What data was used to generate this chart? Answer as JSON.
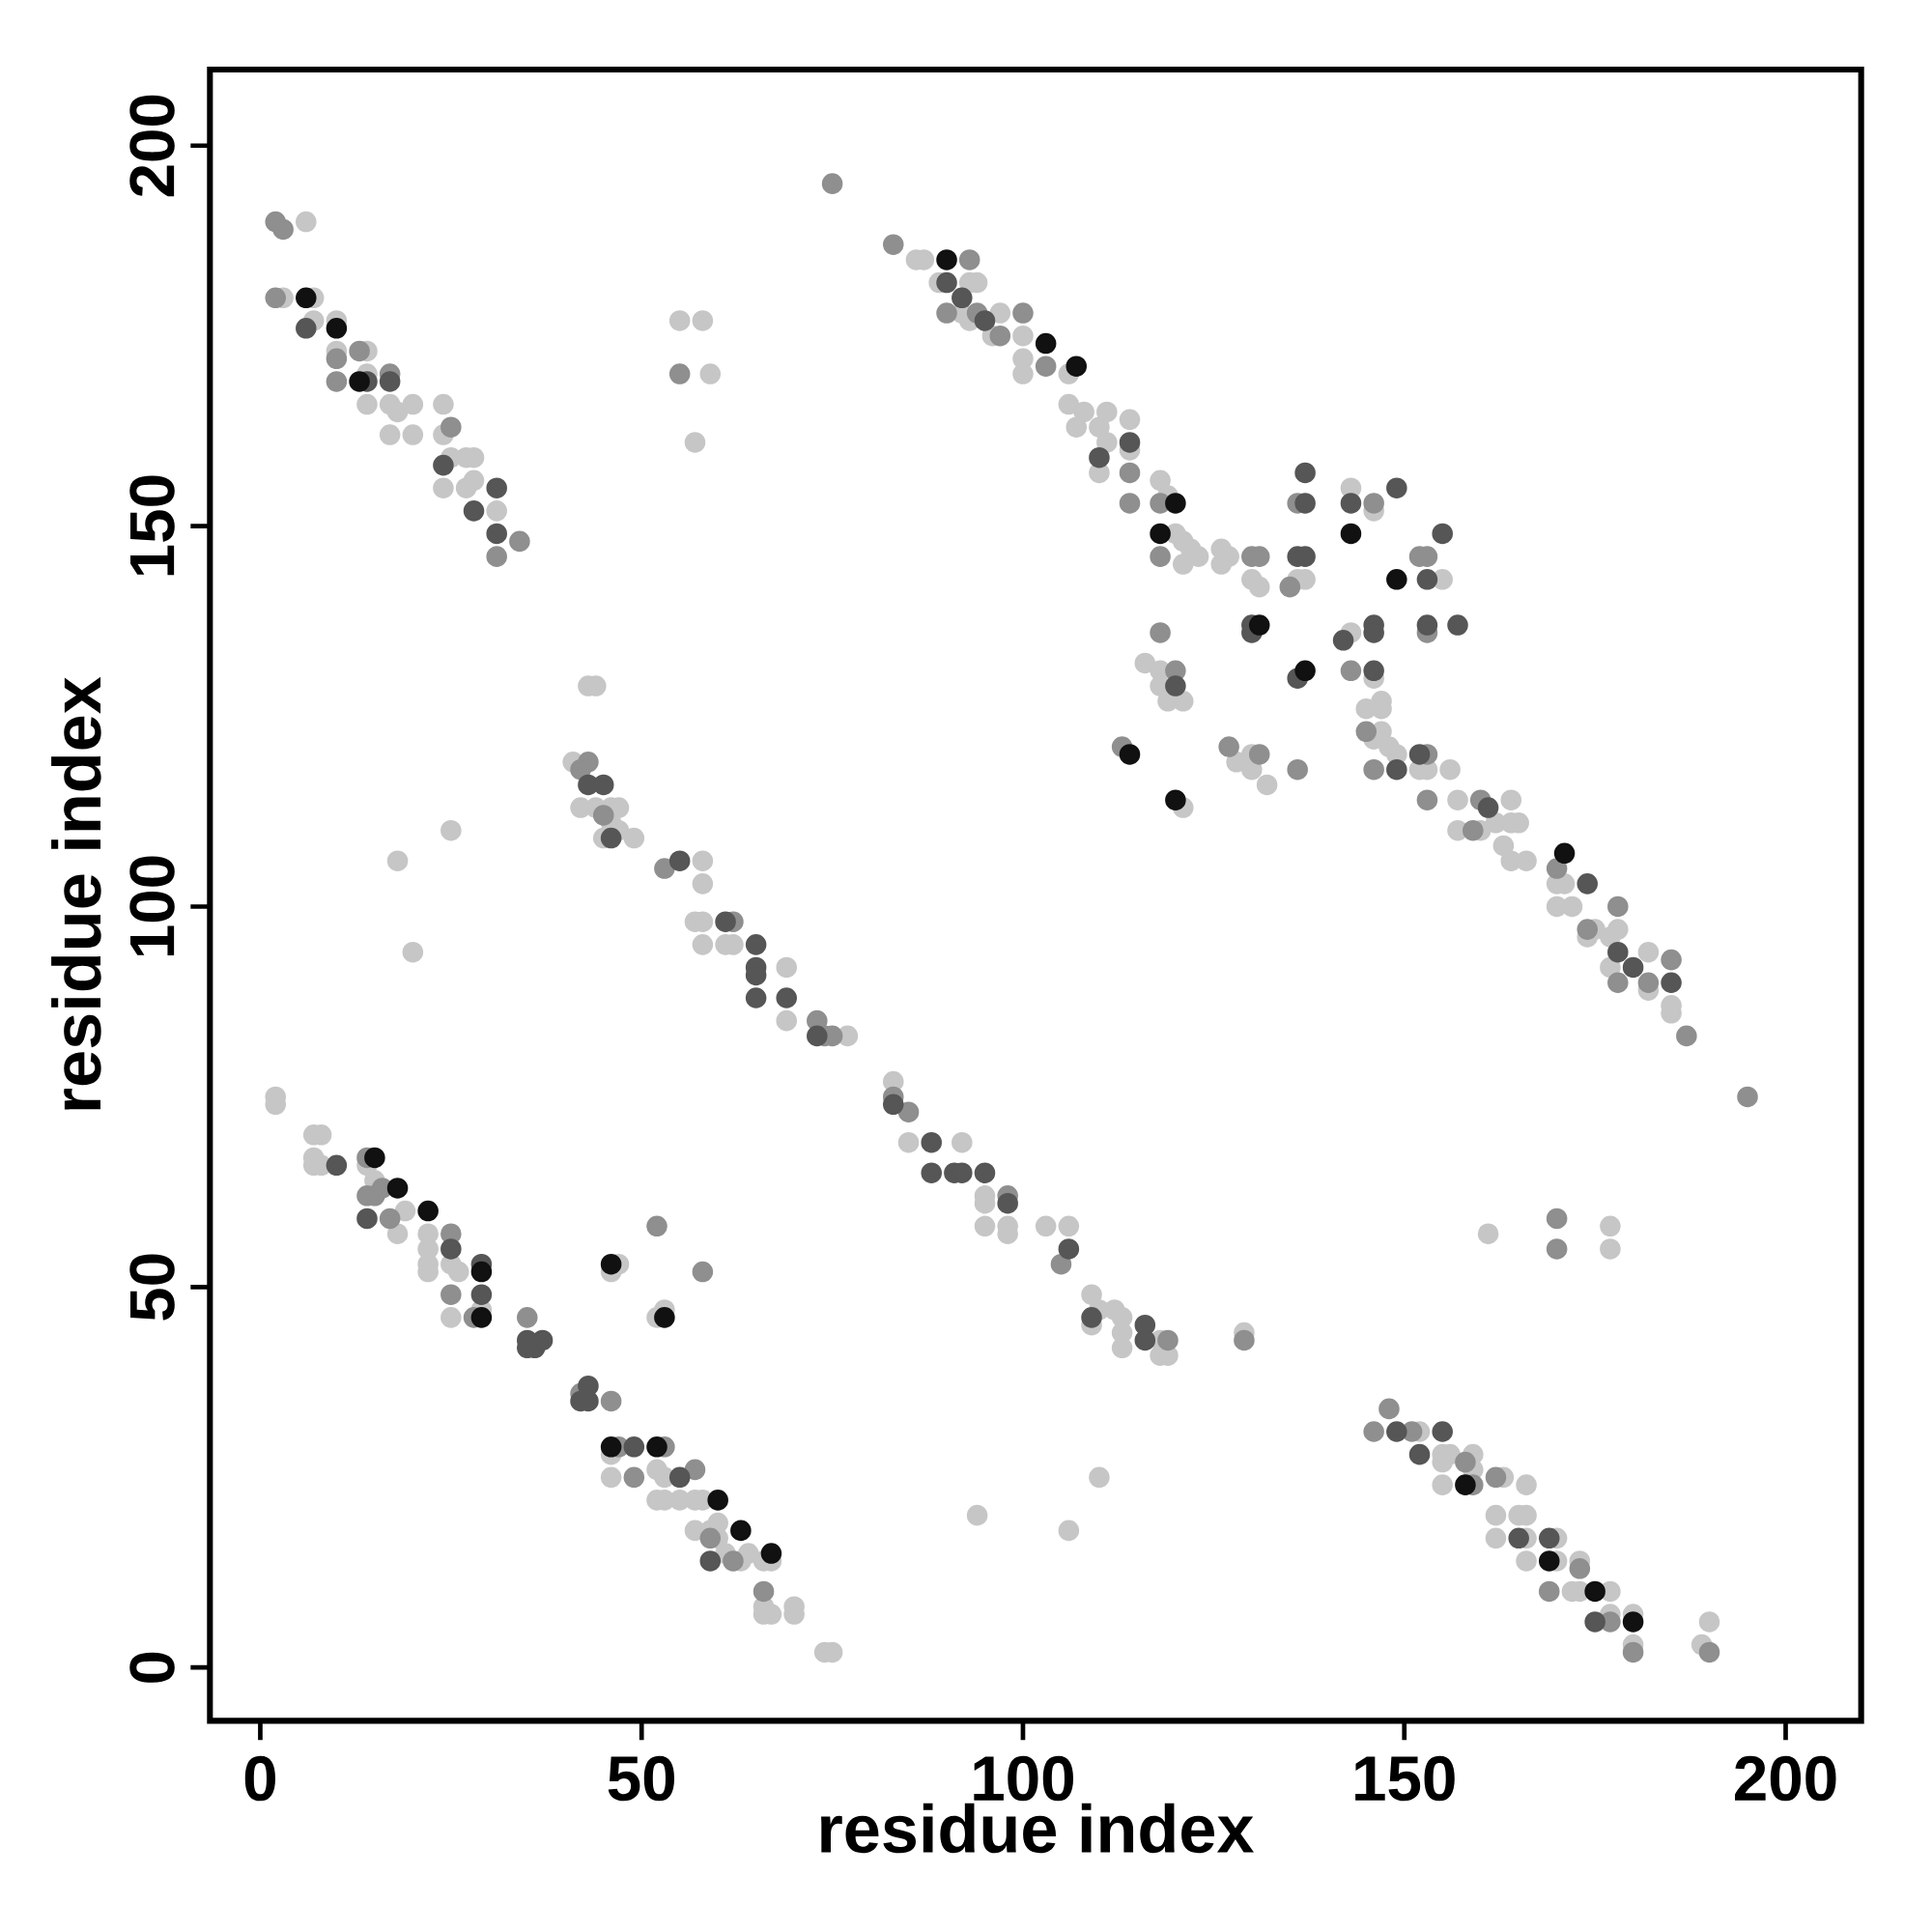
{
  "chart_data": {
    "type": "scatter",
    "xlabel": "residue index",
    "ylabel": "residue index",
    "marker": "circle",
    "xlim": [
      -6.6,
      209.9
    ],
    "ylim": [
      -7,
      210
    ],
    "xticks": [
      0,
      50,
      100,
      150,
      200
    ],
    "yticks": [
      0,
      50,
      100,
      150,
      200
    ],
    "series": [
      {
        "color": "#c6c6c6",
        "x": [
          6,
          3,
          7,
          7,
          10,
          10,
          14,
          14,
          14,
          17,
          17,
          18,
          20,
          20,
          24,
          24,
          25,
          27,
          28,
          27,
          28,
          24,
          31,
          55,
          58,
          59,
          57,
          18,
          20,
          25,
          86,
          87,
          89,
          93,
          94,
          92,
          97,
          93,
          96,
          100,
          100,
          100,
          106,
          106,
          108,
          107,
          111,
          110,
          114,
          110,
          111,
          114,
          118,
          119,
          120,
          121,
          122,
          123,
          121,
          126,
          127,
          126,
          130,
          131,
          136,
          137,
          143,
          146,
          155,
          143,
          146,
          116,
          118,
          118,
          119,
          121,
          121,
          128,
          130,
          130,
          132,
          145,
          147,
          147,
          146,
          147,
          148,
          149,
          152,
          153,
          156,
          157,
          157,
          160,
          162,
          164,
          164,
          165,
          163,
          164,
          166,
          170,
          171,
          170,
          172,
          175,
          174,
          178,
          177,
          177,
          182,
          182,
          185,
          185,
          43,
          44,
          41,
          42,
          44,
          46,
          47,
          46,
          45,
          49,
          47,
          58,
          58,
          57,
          58,
          58,
          61,
          62,
          69,
          69,
          77,
          83,
          85,
          92,
          95,
          95,
          95,
          98,
          98,
          103,
          106,
          109,
          109,
          110,
          112,
          113,
          113,
          113,
          118,
          118,
          119,
          129,
          161,
          177,
          177,
          110,
          106,
          94,
          2,
          2,
          7,
          8,
          7,
          7,
          8,
          14,
          15,
          19,
          18,
          22,
          22,
          22,
          22,
          25,
          26,
          25,
          29,
          47,
          46,
          52,
          53,
          46,
          46,
          52,
          53,
          52,
          53,
          55,
          57,
          58,
          57,
          59,
          60,
          60,
          61,
          63,
          64,
          66,
          67,
          66,
          66,
          67,
          70,
          70,
          74,
          75,
          152,
          155,
          156,
          155,
          159,
          159,
          155,
          163,
          166,
          162,
          165,
          166,
          162,
          166,
          166,
          170,
          170,
          172,
          173,
          173,
          177,
          177,
          180,
          180,
          189,
          190
        ],
        "values": [
          190,
          180,
          180,
          177,
          177,
          173,
          173,
          170,
          166,
          166,
          162,
          165,
          166,
          162,
          166,
          162,
          159,
          159,
          159,
          155,
          156,
          155,
          152,
          177,
          177,
          170,
          161,
          106,
          94,
          110,
          185,
          185,
          182,
          182,
          182,
          178,
          178,
          177,
          175,
          175,
          172,
          170,
          170,
          166,
          165,
          163,
          165,
          163,
          164,
          157,
          161,
          160,
          156,
          154,
          149,
          148,
          147,
          146,
          145,
          147,
          146,
          145,
          143,
          142,
          143,
          143,
          155,
          152,
          143,
          136,
          130,
          132,
          131,
          129,
          127,
          127,
          113,
          119,
          120,
          118,
          116,
          126,
          127,
          126,
          122,
          123,
          121,
          120,
          118,
          118,
          118,
          114,
          110,
          110,
          111,
          114,
          111,
          111,
          108,
          106,
          106,
          103,
          103,
          100,
          100,
          97,
          96,
          97,
          96,
          92,
          94,
          89,
          87,
          86,
          129,
          129,
          119,
          113,
          113,
          113,
          113,
          111,
          109,
          109,
          110,
          106,
          103,
          98,
          98,
          95,
          95,
          95,
          92,
          85,
          83,
          77,
          69,
          69,
          62,
          61,
          58,
          58,
          57,
          58,
          58,
          49,
          45,
          47,
          47,
          46,
          44,
          42,
          43,
          41,
          41,
          44,
          57,
          58,
          55,
          25,
          18,
          20,
          75,
          74,
          70,
          70,
          67,
          66,
          66,
          66,
          64,
          60,
          57,
          57,
          55,
          53,
          52,
          53,
          52,
          46,
          47,
          53,
          52,
          46,
          47,
          28,
          25,
          26,
          25,
          22,
          22,
          22,
          22,
          22,
          18,
          18,
          19,
          17,
          15,
          14,
          15,
          14,
          14,
          8,
          7,
          7,
          8,
          7,
          2,
          2,
          31,
          28,
          28,
          27,
          28,
          26,
          24,
          25,
          24,
          20,
          20,
          20,
          17,
          17,
          14,
          17,
          14,
          10,
          14,
          10,
          10,
          7,
          7,
          3,
          3,
          6
        ]
      },
      {
        "color": "#8f8f8f",
        "x": [
          2,
          3,
          2,
          10,
          10,
          13,
          17,
          25,
          31,
          34,
          55,
          75,
          83,
          93,
          90,
          94,
          100,
          97,
          103,
          114,
          114,
          118,
          118,
          130,
          131,
          135,
          136,
          136,
          146,
          152,
          153,
          143,
          153,
          118,
          120,
          113,
          127,
          131,
          145,
          146,
          153,
          153,
          160,
          159,
          170,
          178,
          174,
          178,
          182,
          185,
          187,
          195,
          43,
          42,
          45,
          53,
          62,
          73,
          74,
          75,
          83,
          85,
          98,
          105,
          119,
          129,
          170,
          170,
          14,
          14,
          15,
          16,
          17,
          25,
          25,
          28,
          35,
          42,
          46,
          52,
          58,
          47,
          53,
          49,
          57,
          59,
          62,
          66,
          146,
          148,
          151,
          158,
          159,
          162,
          173,
          169,
          177,
          180,
          190
        ],
        "values": [
          190,
          189,
          180,
          172,
          169,
          173,
          170,
          163,
          146,
          148,
          170,
          195,
          187,
          185,
          178,
          178,
          178,
          175,
          171,
          157,
          153,
          153,
          146,
          146,
          146,
          142,
          153,
          118,
          153,
          146,
          146,
          131,
          136,
          136,
          131,
          121,
          121,
          120,
          123,
          118,
          120,
          114,
          114,
          110,
          105,
          100,
          97,
          90,
          90,
          93,
          83,
          75,
          119,
          118,
          112,
          105,
          98,
          85,
          83,
          83,
          75,
          73,
          62,
          53,
          43,
          43,
          59,
          55,
          67,
          62,
          62,
          63,
          59,
          57,
          49,
          46,
          46,
          36,
          35,
          58,
          52,
          29,
          29,
          25,
          26,
          17,
          14,
          10,
          31,
          34,
          31,
          27,
          24,
          25,
          13,
          10,
          6,
          2,
          2
        ]
      },
      {
        "color": "#565656",
        "x": [
          6,
          14,
          17,
          24,
          28,
          31,
          31,
          90,
          92,
          95,
          110,
          114,
          136,
          137,
          137,
          137,
          130,
          130,
          136,
          143,
          149,
          155,
          153,
          142,
          146,
          146,
          146,
          153,
          157,
          120,
          161,
          149,
          152,
          174,
          178,
          180,
          185,
          43,
          45,
          46,
          55,
          61,
          65,
          65,
          65,
          65,
          69,
          73,
          83,
          88,
          88,
          91,
          92,
          95,
          98,
          106,
          109,
          116,
          116,
          10,
          14,
          25,
          29,
          29,
          35,
          35,
          36,
          37,
          43,
          42,
          43,
          49,
          55,
          59,
          155,
          149,
          152,
          165,
          169,
          175
        ],
        "values": [
          176,
          169,
          169,
          158,
          152,
          155,
          149,
          182,
          180,
          177,
          159,
          161,
          146,
          146,
          153,
          157,
          137,
          136,
          130,
          153,
          155,
          149,
          143,
          135,
          137,
          136,
          131,
          137,
          137,
          129,
          113,
          118,
          120,
          103,
          94,
          92,
          90,
          116,
          116,
          109,
          106,
          98,
          95,
          92,
          91,
          88,
          88,
          83,
          74,
          69,
          65,
          65,
          65,
          65,
          61,
          55,
          46,
          45,
          43,
          66,
          59,
          55,
          53,
          49,
          43,
          42,
          42,
          43,
          37,
          35,
          35,
          29,
          25,
          14,
          31,
          31,
          28,
          17,
          17,
          6
        ]
      },
      {
        "color": "#111111",
        "x": [
          6,
          10,
          13,
          90,
          103,
          107,
          120,
          118,
          131,
          137,
          143,
          149,
          114,
          120,
          171,
          15,
          18,
          22,
          29,
          29,
          46,
          53,
          46,
          52,
          60,
          63,
          67,
          158,
          169,
          175,
          180
        ],
        "values": [
          180,
          176,
          169,
          185,
          174,
          171,
          153,
          149,
          137,
          131,
          149,
          143,
          120,
          114,
          107,
          67,
          63,
          60,
          52,
          46,
          53,
          46,
          29,
          29,
          22,
          18,
          15,
          24,
          14,
          10,
          6
        ]
      }
    ]
  }
}
